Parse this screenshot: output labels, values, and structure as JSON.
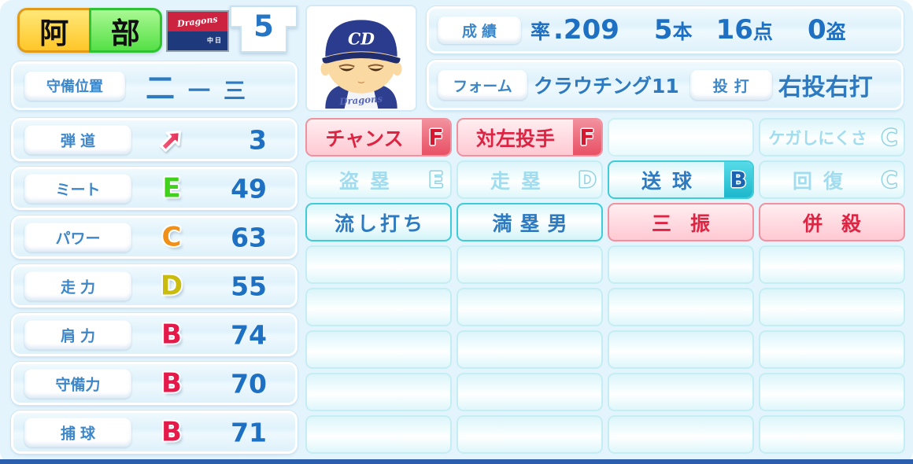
{
  "colors": {
    "accent_blue": "#1d70c2",
    "panel_blue": "#e4f4fc",
    "cyan_positive": "#3fccd9",
    "red_negative": "#dd2443",
    "grade_b": "#e5194a",
    "grade_c": "#f09018",
    "grade_d": "#c9bc0e",
    "grade_e": "#3fd11c",
    "name_yellow": "#ffc628",
    "name_green": "#55e046",
    "bottom_bar_blue": "#2b5fae"
  },
  "header": {
    "name_left": "阿",
    "name_right": "部",
    "flag_name": "Dragons",
    "flag_sub": "中日",
    "number": "5",
    "position_label": "守備位置",
    "position_main": "二",
    "position_sub1": "一",
    "position_sub2": "三",
    "stats_label": "成績",
    "avg_prefix": "率",
    "avg_value": ".209",
    "hr_value": "5",
    "hr_suffix": "本",
    "rbi_value": "16",
    "rbi_suffix": "点",
    "sb_value": "0",
    "sb_suffix": "盗",
    "form_label": "フォーム",
    "form_value": "クラウチング11",
    "throwbat_label": "投打",
    "throwbat_value": "右投右打"
  },
  "stats": {
    "rows": [
      {
        "label": "弾道",
        "grade": "",
        "value": "3"
      },
      {
        "label": "ミート",
        "grade": "E",
        "value": "49"
      },
      {
        "label": "パワー",
        "grade": "C",
        "value": "63"
      },
      {
        "label": "走力",
        "grade": "D",
        "value": "55"
      },
      {
        "label": "肩力",
        "grade": "B",
        "value": "74"
      },
      {
        "label": "守備力",
        "grade": "B",
        "value": "70"
      },
      {
        "label": "捕球",
        "grade": "B",
        "value": "71"
      }
    ]
  },
  "special": {
    "rows": [
      [
        {
          "label": "チャンス",
          "grade": "F",
          "style": "red-grade"
        },
        {
          "label": "対左投手",
          "grade": "F",
          "style": "red-grade"
        },
        {
          "label": "",
          "grade": "",
          "style": "blank"
        },
        {
          "label": "ケガしにくさ",
          "grade": "C",
          "style": "faded"
        }
      ],
      [
        {
          "label": "盗塁",
          "grade": "E",
          "style": "faded"
        },
        {
          "label": "走塁",
          "grade": "D",
          "style": "faded"
        },
        {
          "label": "送球",
          "grade": "B",
          "style": "cyan-grade"
        },
        {
          "label": "回復",
          "grade": "C",
          "style": "faded"
        }
      ],
      [
        {
          "label": "流し打ち",
          "grade": "",
          "style": "cyan"
        },
        {
          "label": "満塁男",
          "grade": "",
          "style": "cyan"
        },
        {
          "label": "三振",
          "grade": "",
          "style": "red"
        },
        {
          "label": "併殺",
          "grade": "",
          "style": "red"
        }
      ]
    ],
    "empty_row_count": 5
  }
}
